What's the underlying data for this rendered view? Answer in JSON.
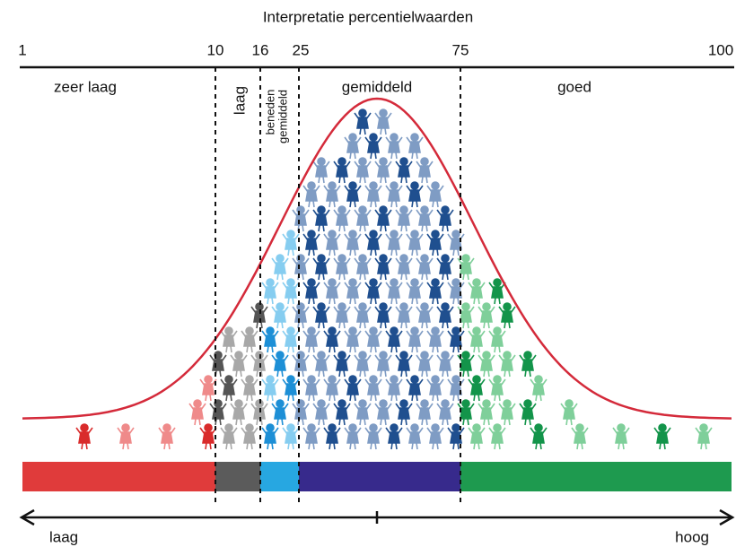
{
  "title": "Interpretatie percentielwaarden",
  "scale": {
    "ticks": [
      "1",
      "10",
      "16",
      "25",
      "75",
      "100"
    ]
  },
  "zones": [
    {
      "lines": [
        "zeer laag"
      ]
    },
    {
      "lines": [
        "laag"
      ]
    },
    {
      "lines": [
        "beneden",
        "gemiddeld"
      ]
    },
    {
      "lines": [
        "gemiddeld"
      ]
    },
    {
      "lines": [
        "goed"
      ]
    }
  ],
  "axis": {
    "low": "laag",
    "high": "hoog"
  }
}
